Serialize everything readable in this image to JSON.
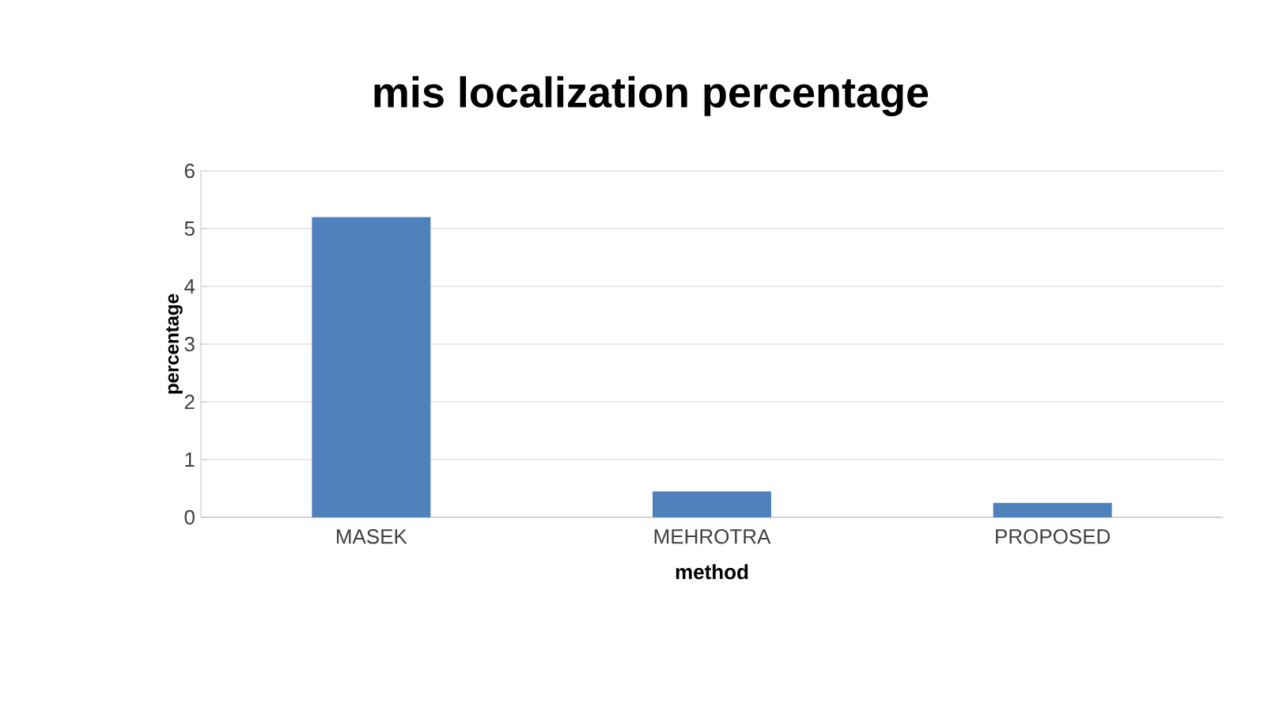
{
  "chart_data": {
    "type": "bar",
    "title": "mis localization percentage",
    "xlabel": "method",
    "ylabel": "percentage",
    "categories": [
      "MASEK",
      "MEHROTRA",
      "PROPOSED"
    ],
    "values": [
      5.2,
      0.45,
      0.25
    ],
    "color": "#4f81bd",
    "ylim": [
      0,
      6
    ],
    "yticks": [
      0,
      1,
      2,
      3,
      4,
      5,
      6
    ],
    "grid": "y"
  }
}
